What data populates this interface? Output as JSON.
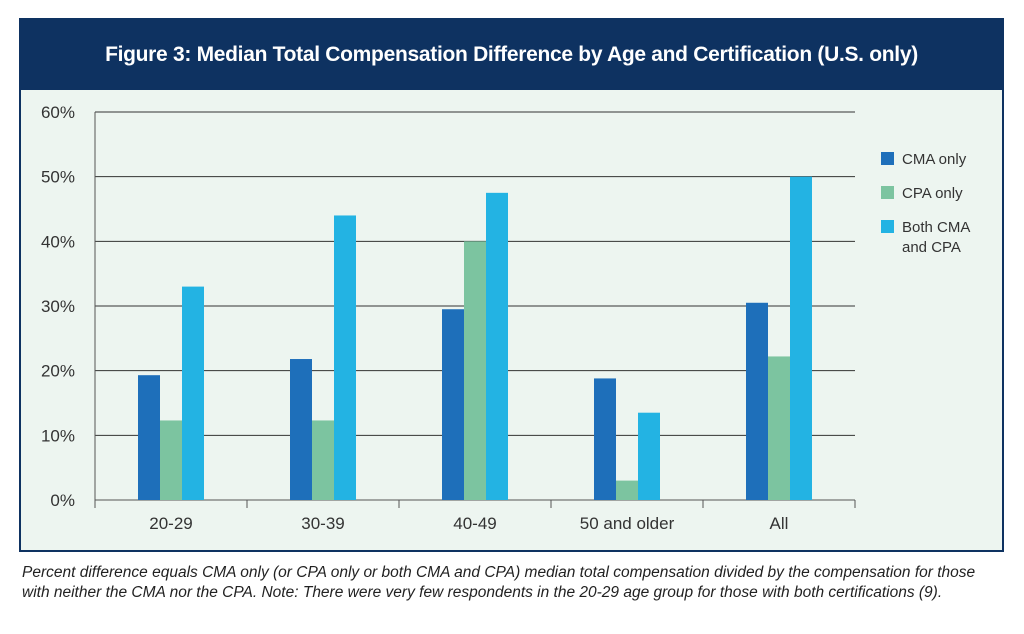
{
  "title": "Figure 3: Median Total Compensation Difference by Age and Certification (U.S. only)",
  "caption": "Percent difference equals CMA only (or CPA only or both CMA and CPA) median total compensation divided by the compensation for those with neither the CMA nor the CPA. Note: There were very few respondents in the 20-29 age group for those with both certifications (9).",
  "chart_data": {
    "type": "bar",
    "title": "Figure 3: Median Total Compensation Difference by Age and Certification (U.S. only)",
    "xlabel": "",
    "ylabel": "",
    "categories": [
      "20-29",
      "30-39",
      "40-49",
      "50 and older",
      "All"
    ],
    "ylim": [
      0,
      60
    ],
    "yticks": [
      "0%",
      "10%",
      "20%",
      "30%",
      "40%",
      "50%",
      "60%"
    ],
    "grid": true,
    "legend_position": "right",
    "series": [
      {
        "name": "CMA only",
        "color": "#1e6fba",
        "values": [
          19.3,
          21.8,
          29.5,
          18.8,
          30.5
        ]
      },
      {
        "name": "CPA only",
        "color": "#7cc4a0",
        "values": [
          12.3,
          12.3,
          40.0,
          3.0,
          22.2
        ]
      },
      {
        "name": "Both CMA and CPA",
        "legend_lines": [
          "Both CMA",
          "and CPA"
        ],
        "color": "#23b3e3",
        "values": [
          33.0,
          44.0,
          47.5,
          13.5,
          50.0
        ]
      }
    ]
  }
}
